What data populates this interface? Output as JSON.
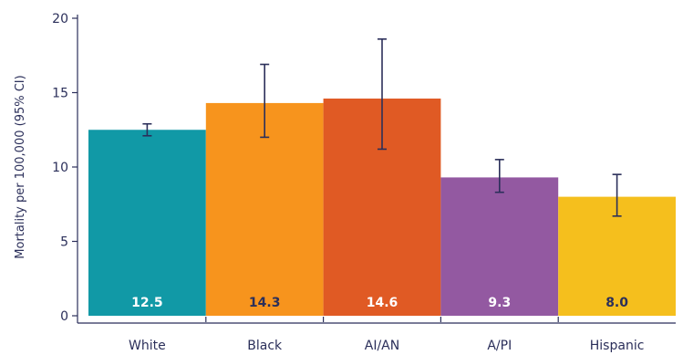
{
  "chart_data": {
    "type": "bar",
    "title": "",
    "xlabel": "",
    "ylabel": "Mortality per 100,000 (95% CI)",
    "ylim": [
      0,
      20
    ],
    "yticks": [
      0,
      5,
      10,
      15,
      20
    ],
    "grid": false,
    "categories": [
      "White",
      "Black",
      "AI/AN",
      "A/PI",
      "Hispanic"
    ],
    "values": [
      12.5,
      14.3,
      14.6,
      9.3,
      8.0
    ],
    "value_labels": [
      "12.5",
      "14.3",
      "14.6",
      "9.3",
      "8.0"
    ],
    "ci_lower": [
      12.1,
      12.0,
      11.2,
      8.3,
      6.7
    ],
    "ci_upper": [
      12.9,
      16.9,
      18.6,
      10.5,
      9.5
    ],
    "colors": [
      "#1199a6",
      "#f7941d",
      "#e05a24",
      "#9359a1",
      "#f5bf1d"
    ],
    "label_colors": [
      "#ffffff",
      "#2b2f5a",
      "#ffffff",
      "#ffffff",
      "#2b2f5a"
    ],
    "axis_color": "#2b2f5a",
    "errorbar_color": "#2b2f5a"
  }
}
